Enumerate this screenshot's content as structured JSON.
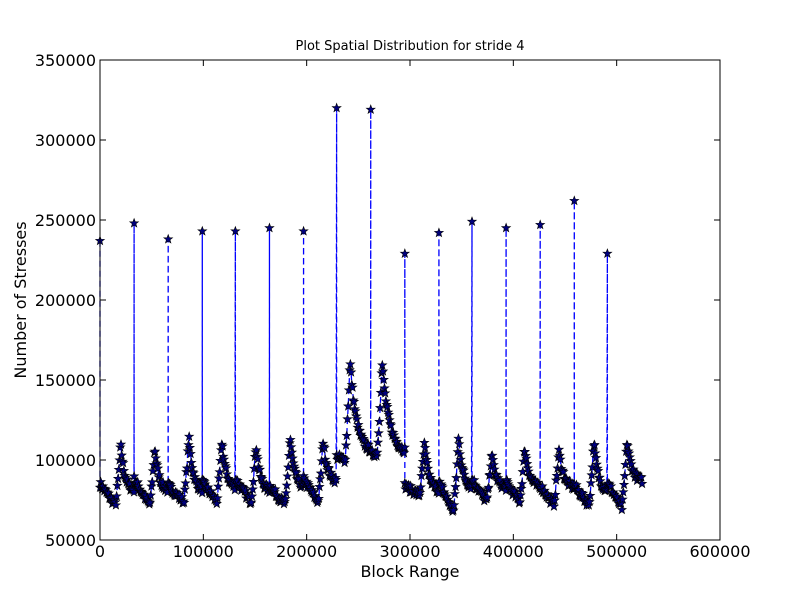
{
  "chart_data": {
    "type": "line",
    "title": "Plot Spatial Distribution for stride 4",
    "xlabel": "Block Range",
    "ylabel": "Number of Stresses",
    "xlim": [
      0,
      600000
    ],
    "ylim": [
      50000,
      350000
    ],
    "x_ticks": [
      0,
      100000,
      200000,
      300000,
      400000,
      500000,
      600000
    ],
    "x_tick_labels": [
      "0",
      "100000",
      "200000",
      "300000",
      "400000",
      "500000",
      "600000"
    ],
    "y_ticks": [
      50000,
      100000,
      150000,
      200000,
      250000,
      300000,
      350000
    ],
    "y_tick_labels": [
      "50000",
      "100000",
      "150000",
      "200000",
      "250000",
      "300000",
      "350000"
    ],
    "grid": false,
    "legend": "none",
    "line_style": "dashed",
    "marker": "star",
    "colors": {
      "line": "#0000ff",
      "marker_face": "#00007f",
      "marker_edge": "#000000"
    },
    "spikes": [
      {
        "x": 0,
        "y": 237000
      },
      {
        "x": 33000,
        "y": 248000
      },
      {
        "x": 66000,
        "y": 238000
      },
      {
        "x": 99000,
        "y": 243000
      },
      {
        "x": 131000,
        "y": 243000
      },
      {
        "x": 164000,
        "y": 245000
      },
      {
        "x": 197000,
        "y": 243000
      },
      {
        "x": 229000,
        "y": 320000
      },
      {
        "x": 262000,
        "y": 319000
      },
      {
        "x": 295000,
        "y": 229000
      },
      {
        "x": 328000,
        "y": 242000
      },
      {
        "x": 360000,
        "y": 249000
      },
      {
        "x": 393000,
        "y": 245000
      },
      {
        "x": 426000,
        "y": 247000
      },
      {
        "x": 459000,
        "y": 262000
      },
      {
        "x": 491000,
        "y": 229000
      }
    ],
    "segments": [
      {
        "start": 0,
        "end": 33000,
        "start_y": 85000,
        "pre_peak_min": 72000,
        "peak_x": 20000,
        "peak_y": 110000,
        "end_y": 80000
      },
      {
        "start": 33000,
        "end": 66000,
        "start_y": 88000,
        "pre_peak_min": 72000,
        "peak_x": 53000,
        "peak_y": 108000,
        "end_y": 80000
      },
      {
        "start": 66000,
        "end": 99000,
        "start_y": 84000,
        "pre_peak_min": 74000,
        "peak_x": 86000,
        "peak_y": 115000,
        "end_y": 80000
      },
      {
        "start": 99000,
        "end": 131000,
        "start_y": 86000,
        "pre_peak_min": 74000,
        "peak_x": 118000,
        "peak_y": 112000,
        "end_y": 82000
      },
      {
        "start": 131000,
        "end": 164000,
        "start_y": 88000,
        "pre_peak_min": 74000,
        "peak_x": 151000,
        "peak_y": 110000,
        "end_y": 80000
      },
      {
        "start": 164000,
        "end": 197000,
        "start_y": 84000,
        "pre_peak_min": 72000,
        "peak_x": 184000,
        "peak_y": 115000,
        "end_y": 82000
      },
      {
        "start": 197000,
        "end": 229000,
        "start_y": 88000,
        "pre_peak_min": 74000,
        "peak_x": 216000,
        "peak_y": 113000,
        "end_y": 86000
      },
      {
        "start": 229000,
        "end": 262000,
        "start_y": 102000,
        "pre_peak_min": 100000,
        "peak_x": 242000,
        "peak_y": 162000,
        "end_y": 104000
      },
      {
        "start": 262000,
        "end": 295000,
        "start_y": 104000,
        "pre_peak_min": 104000,
        "peak_x": 273000,
        "peak_y": 161000,
        "end_y": 104000
      },
      {
        "start": 295000,
        "end": 328000,
        "start_y": 84000,
        "pre_peak_min": 78000,
        "peak_x": 314000,
        "peak_y": 110000,
        "end_y": 80000
      },
      {
        "start": 328000,
        "end": 360000,
        "start_y": 86000,
        "pre_peak_min": 68000,
        "peak_x": 347000,
        "peak_y": 114000,
        "end_y": 82000
      },
      {
        "start": 360000,
        "end": 393000,
        "start_y": 88000,
        "pre_peak_min": 74000,
        "peak_x": 379000,
        "peak_y": 104000,
        "end_y": 82000
      },
      {
        "start": 393000,
        "end": 426000,
        "start_y": 86000,
        "pre_peak_min": 74000,
        "peak_x": 411000,
        "peak_y": 108000,
        "end_y": 82000
      },
      {
        "start": 426000,
        "end": 459000,
        "start_y": 84000,
        "pre_peak_min": 72000,
        "peak_x": 444000,
        "peak_y": 106000,
        "end_y": 82000
      },
      {
        "start": 459000,
        "end": 491000,
        "start_y": 84000,
        "pre_peak_min": 72000,
        "peak_x": 478000,
        "peak_y": 112000,
        "end_y": 80000
      },
      {
        "start": 491000,
        "end": 525000,
        "start_y": 86000,
        "pre_peak_min": 70000,
        "peak_x": 510000,
        "peak_y": 112000,
        "end_y": 86000
      }
    ]
  }
}
